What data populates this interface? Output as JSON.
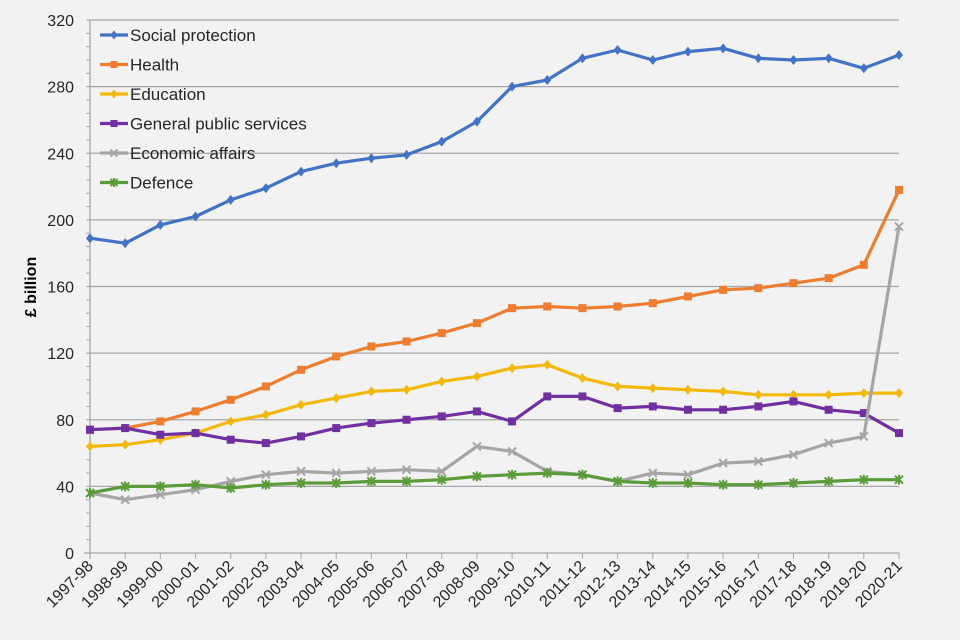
{
  "chart_data": {
    "type": "line",
    "title": "",
    "xlabel": "",
    "ylabel": "£ billion",
    "ylim": [
      0,
      320
    ],
    "yticks": [
      0,
      40,
      80,
      120,
      160,
      200,
      240,
      280,
      320
    ],
    "grid": true,
    "legend_position": "top-left",
    "categories": [
      "1997-98",
      "1998-99",
      "1999-00",
      "2000-01",
      "2001-02",
      "2002-03",
      "2003-04",
      "2004-05",
      "2005-06",
      "2006-07",
      "2007-08",
      "2008-09",
      "2009-10",
      "2010-11",
      "2011-12",
      "2012-13",
      "2013-14",
      "2014-15",
      "2015-16",
      "2016-17",
      "2017-18",
      "2018-19",
      "2019-20",
      "2020-21"
    ],
    "series": [
      {
        "name": "Social protection",
        "color": "#4472c4",
        "marker": "diamond",
        "values": [
          189,
          186,
          197,
          202,
          212,
          219,
          229,
          234,
          237,
          239,
          247,
          259,
          280,
          284,
          297,
          302,
          296,
          301,
          303,
          297,
          296,
          297,
          291,
          299
        ]
      },
      {
        "name": "Health",
        "color": "#ed7d31",
        "marker": "square",
        "values": [
          74,
          75,
          79,
          85,
          92,
          100,
          110,
          118,
          124,
          127,
          132,
          138,
          147,
          148,
          147,
          148,
          150,
          154,
          158,
          159,
          162,
          165,
          173,
          218
        ]
      },
      {
        "name": "Education",
        "color": "#f2b90c",
        "marker": "diamond",
        "values": [
          64,
          65,
          68,
          72,
          79,
          83,
          89,
          93,
          97,
          98,
          103,
          106,
          111,
          113,
          105,
          100,
          99,
          98,
          97,
          95,
          95,
          95,
          96,
          96
        ]
      },
      {
        "name": "General public services",
        "color": "#7030a0",
        "marker": "square",
        "values": [
          74,
          75,
          71,
          72,
          68,
          66,
          70,
          75,
          78,
          80,
          82,
          85,
          79,
          94,
          94,
          87,
          88,
          86,
          86,
          88,
          91,
          86,
          84,
          72
        ]
      },
      {
        "name": "Economic affairs",
        "color": "#a5a5a5",
        "marker": "x",
        "values": [
          36,
          32,
          35,
          38,
          43,
          47,
          49,
          48,
          49,
          50,
          49,
          64,
          61,
          49,
          47,
          43,
          48,
          47,
          54,
          55,
          59,
          66,
          70,
          196
        ]
      },
      {
        "name": "Defence",
        "color": "#5b9b3a",
        "marker": "star",
        "values": [
          36,
          40,
          40,
          41,
          39,
          41,
          42,
          42,
          43,
          43,
          44,
          46,
          47,
          48,
          47,
          43,
          42,
          42,
          41,
          41,
          42,
          43,
          44,
          44
        ]
      }
    ]
  }
}
